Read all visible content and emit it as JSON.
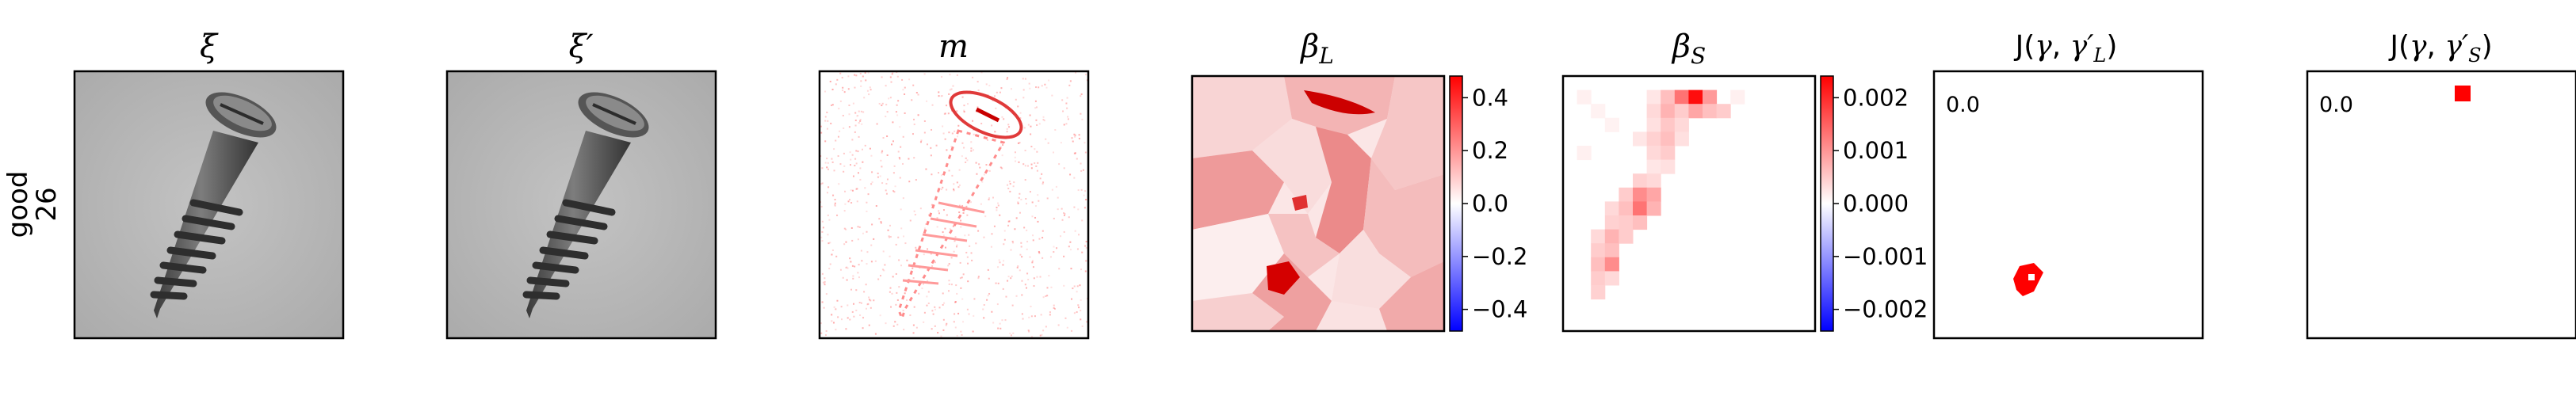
{
  "row_label": {
    "line1": "good",
    "line2": "26"
  },
  "panels": [
    {
      "id": "xi",
      "title": "ξ",
      "kind": "image"
    },
    {
      "id": "xi_prime",
      "title": "ξ′",
      "kind": "image"
    },
    {
      "id": "m",
      "title": "m",
      "kind": "mask-map"
    },
    {
      "id": "beta_L",
      "title": "β_L",
      "kind": "heatmap-superpixel"
    },
    {
      "id": "beta_S",
      "title": "β_S",
      "kind": "heatmap-grid"
    },
    {
      "id": "J_L",
      "title": "J(γ, γ′_L)",
      "kind": "binary-map",
      "score": "0.0"
    },
    {
      "id": "J_S",
      "title": "J(γ, γ′_S)",
      "kind": "binary-map",
      "score": "0.0"
    }
  ],
  "colorbars": {
    "beta_L": {
      "ticks": [
        "0.4",
        "0.2",
        "0.0",
        "−0.2",
        "−0.4"
      ],
      "range": [
        -0.5,
        0.5
      ]
    },
    "beta_S": {
      "ticks": [
        "0.002",
        "0.001",
        "0.000",
        "−0.001",
        "−0.002"
      ],
      "range": [
        -0.0021,
        0.0021
      ]
    }
  },
  "colors": {
    "positive": "#ff0000",
    "negative": "#0000ff",
    "neutral": "#ffffff",
    "background_gray": "#b9b9b9"
  }
}
